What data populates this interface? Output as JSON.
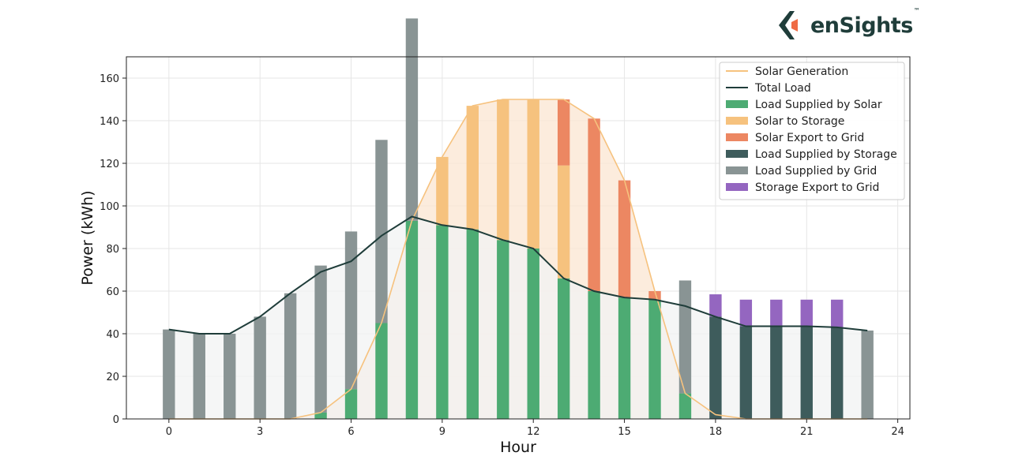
{
  "brand": {
    "name": "enSights",
    "tm": "™",
    "colors": {
      "dark": "#1f3d3a",
      "accent": "#ef6b45"
    }
  },
  "chart_data": {
    "type": "bar",
    "xlabel": "Hour",
    "ylabel": "Power (kWh)",
    "xlim": [
      -1.4,
      24.4
    ],
    "ylim": [
      0,
      170
    ],
    "xticks": [
      0,
      3,
      6,
      9,
      12,
      15,
      18,
      21,
      24
    ],
    "yticks": [
      0,
      20,
      40,
      60,
      80,
      100,
      120,
      140,
      160
    ],
    "grid": true,
    "legend_position": "top-right",
    "hours": [
      0,
      1,
      2,
      3,
      4,
      5,
      6,
      7,
      8,
      9,
      10,
      11,
      12,
      13,
      14,
      15,
      16,
      17,
      18,
      19,
      20,
      21,
      22,
      23
    ],
    "lines": [
      {
        "name": "Solar Generation",
        "color": "#f6c27e",
        "fill": "#fbe6d2",
        "values": [
          0,
          0,
          0,
          0,
          0,
          3,
          14,
          45,
          93,
          123,
          147,
          150,
          150,
          150,
          141,
          112,
          60,
          12,
          2,
          0,
          0,
          0,
          0,
          0
        ]
      },
      {
        "name": "Total Load",
        "color": "#1f3d3a",
        "fill": "#f1f3f3",
        "values": [
          42,
          40,
          40,
          48,
          59,
          69,
          74,
          86,
          95,
          91,
          89,
          84,
          80,
          66,
          60,
          57,
          56,
          53,
          48,
          43.5,
          43.5,
          43.5,
          43,
          41.5
        ]
      }
    ],
    "series": [
      {
        "name": "Load Supplied by Solar",
        "color": "#4dab73",
        "values": [
          0,
          0,
          0,
          0,
          0,
          3,
          14,
          45,
          93,
          91,
          89,
          84,
          80,
          66,
          60,
          57,
          56,
          12,
          0,
          0,
          0,
          0,
          0,
          0
        ]
      },
      {
        "name": "Solar to Storage",
        "color": "#f6c27e",
        "values": [
          0,
          0,
          0,
          0,
          0,
          0,
          0,
          0,
          0,
          32,
          58,
          66,
          70,
          53,
          0,
          0,
          0,
          0,
          0,
          0,
          0,
          0,
          0,
          0
        ]
      },
      {
        "name": "Solar Export to Grid",
        "color": "#ec8762",
        "values": [
          0,
          0,
          0,
          0,
          0,
          0,
          0,
          0,
          0,
          0,
          0,
          0,
          0,
          31,
          81,
          55,
          4,
          0,
          0,
          0,
          0,
          0,
          0,
          0
        ]
      },
      {
        "name": "Load Supplied by Storage",
        "color": "#3e5c5c",
        "values": [
          0,
          0,
          0,
          0,
          0,
          0,
          0,
          0,
          0,
          0,
          0,
          0,
          0,
          0,
          0,
          0,
          0,
          0,
          48,
          43.5,
          43.5,
          43.5,
          43,
          0
        ]
      },
      {
        "name": "Load Supplied by Grid",
        "color": "#899494",
        "values": [
          42,
          40,
          40,
          48,
          59,
          69,
          74,
          86,
          95,
          0,
          0,
          0,
          0,
          0,
          0,
          0,
          0,
          53,
          0,
          0,
          0,
          0,
          0,
          41.5
        ]
      },
      {
        "name": "Storage Export to Grid",
        "color": "#9466c0",
        "values": [
          0,
          0,
          0,
          0,
          0,
          0,
          0,
          0,
          0,
          0,
          0,
          0,
          0,
          0,
          0,
          0,
          0,
          0,
          10.5,
          12.5,
          12.5,
          12.5,
          13,
          0
        ]
      }
    ]
  }
}
